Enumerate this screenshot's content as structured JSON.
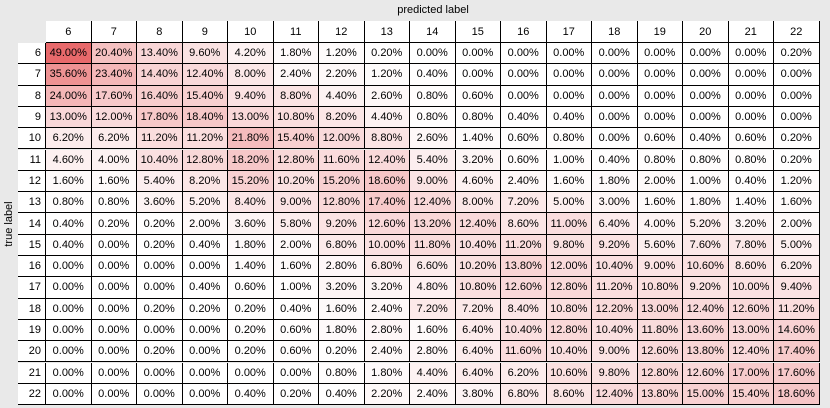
{
  "x_axis_title": "predicted label",
  "y_axis_title": "true label",
  "columns": [
    "6",
    "7",
    "8",
    "9",
    "10",
    "11",
    "12",
    "13",
    "14",
    "15",
    "16",
    "17",
    "18",
    "19",
    "20",
    "21",
    "22"
  ],
  "rows": [
    {
      "label": "6",
      "cells": [
        "49.00%",
        "20.40%",
        "13.40%",
        "9.60%",
        "4.20%",
        "1.80%",
        "1.20%",
        "0.20%",
        "0.00%",
        "0.00%",
        "0.00%",
        "0.00%",
        "0.00%",
        "0.00%",
        "0.00%",
        "0.00%",
        "0.20%"
      ]
    },
    {
      "label": "7",
      "cells": [
        "35.60%",
        "23.40%",
        "14.40%",
        "12.40%",
        "8.00%",
        "2.40%",
        "2.20%",
        "1.20%",
        "0.40%",
        "0.00%",
        "0.00%",
        "0.00%",
        "0.00%",
        "0.00%",
        "0.00%",
        "0.00%",
        "0.00%"
      ]
    },
    {
      "label": "8",
      "cells": [
        "24.00%",
        "17.60%",
        "16.40%",
        "15.40%",
        "9.40%",
        "8.80%",
        "4.40%",
        "2.60%",
        "0.80%",
        "0.60%",
        "0.00%",
        "0.00%",
        "0.00%",
        "0.00%",
        "0.00%",
        "0.00%",
        "0.00%"
      ]
    },
    {
      "label": "9",
      "cells": [
        "13.00%",
        "12.00%",
        "17.80%",
        "18.40%",
        "13.00%",
        "10.80%",
        "8.20%",
        "4.40%",
        "0.80%",
        "0.80%",
        "0.40%",
        "0.40%",
        "0.00%",
        "0.00%",
        "0.00%",
        "0.00%",
        "0.00%"
      ]
    },
    {
      "label": "10",
      "cells": [
        "6.20%",
        "6.20%",
        "11.20%",
        "11.20%",
        "21.80%",
        "15.40%",
        "12.00%",
        "8.80%",
        "2.60%",
        "1.40%",
        "0.60%",
        "0.80%",
        "0.00%",
        "0.60%",
        "0.40%",
        "0.60%",
        "0.20%"
      ]
    },
    {
      "label": "11",
      "cells": [
        "4.60%",
        "4.00%",
        "10.40%",
        "12.80%",
        "18.20%",
        "12.80%",
        "11.60%",
        "12.40%",
        "5.40%",
        "3.20%",
        "0.60%",
        "1.00%",
        "0.40%",
        "0.80%",
        "0.80%",
        "0.80%",
        "0.20%"
      ]
    },
    {
      "label": "12",
      "cells": [
        "1.60%",
        "1.60%",
        "5.40%",
        "8.20%",
        "15.20%",
        "10.20%",
        "15.20%",
        "18.60%",
        "9.00%",
        "4.60%",
        "2.40%",
        "1.60%",
        "1.80%",
        "2.00%",
        "1.00%",
        "0.40%",
        "1.20%"
      ]
    },
    {
      "label": "13",
      "cells": [
        "0.80%",
        "0.80%",
        "3.60%",
        "5.20%",
        "8.40%",
        "9.00%",
        "12.80%",
        "17.40%",
        "12.40%",
        "8.00%",
        "7.20%",
        "5.00%",
        "3.00%",
        "1.60%",
        "1.80%",
        "1.40%",
        "1.60%"
      ]
    },
    {
      "label": "14",
      "cells": [
        "0.40%",
        "0.20%",
        "0.20%",
        "2.00%",
        "3.60%",
        "5.80%",
        "9.20%",
        "12.60%",
        "13.20%",
        "12.40%",
        "8.60%",
        "11.00%",
        "6.40%",
        "4.00%",
        "5.20%",
        "3.20%",
        "2.00%"
      ]
    },
    {
      "label": "15",
      "cells": [
        "0.40%",
        "0.00%",
        "0.20%",
        "0.40%",
        "1.80%",
        "2.00%",
        "6.80%",
        "10.00%",
        "11.80%",
        "10.40%",
        "11.20%",
        "9.80%",
        "9.20%",
        "5.60%",
        "7.60%",
        "7.80%",
        "5.00%"
      ]
    },
    {
      "label": "16",
      "cells": [
        "0.00%",
        "0.00%",
        "0.00%",
        "0.00%",
        "1.40%",
        "1.60%",
        "2.80%",
        "6.80%",
        "6.60%",
        "10.20%",
        "13.80%",
        "12.00%",
        "10.40%",
        "9.00%",
        "10.60%",
        "8.60%",
        "6.20%"
      ]
    },
    {
      "label": "17",
      "cells": [
        "0.00%",
        "0.00%",
        "0.00%",
        "0.40%",
        "0.60%",
        "1.00%",
        "3.20%",
        "3.20%",
        "4.80%",
        "10.80%",
        "12.60%",
        "12.80%",
        "11.20%",
        "10.80%",
        "9.20%",
        "10.00%",
        "9.40%"
      ]
    },
    {
      "label": "18",
      "cells": [
        "0.00%",
        "0.00%",
        "0.20%",
        "0.20%",
        "0.20%",
        "0.40%",
        "1.60%",
        "2.40%",
        "7.20%",
        "7.20%",
        "8.40%",
        "10.80%",
        "12.20%",
        "13.00%",
        "12.40%",
        "12.60%",
        "11.20%"
      ]
    },
    {
      "label": "19",
      "cells": [
        "0.00%",
        "0.00%",
        "0.00%",
        "0.00%",
        "0.20%",
        "0.60%",
        "1.80%",
        "2.80%",
        "1.60%",
        "6.40%",
        "10.40%",
        "12.80%",
        "10.40%",
        "11.80%",
        "13.60%",
        "13.00%",
        "14.60%"
      ]
    },
    {
      "label": "20",
      "cells": [
        "0.00%",
        "0.00%",
        "0.20%",
        "0.00%",
        "0.20%",
        "0.60%",
        "0.20%",
        "2.40%",
        "2.80%",
        "6.40%",
        "11.60%",
        "10.40%",
        "9.00%",
        "12.60%",
        "13.80%",
        "12.40%",
        "17.40%"
      ]
    },
    {
      "label": "21",
      "cells": [
        "0.00%",
        "0.00%",
        "0.00%",
        "0.00%",
        "0.00%",
        "0.00%",
        "0.80%",
        "1.80%",
        "4.40%",
        "6.40%",
        "6.20%",
        "10.60%",
        "9.80%",
        "12.80%",
        "12.60%",
        "17.00%",
        "17.60%"
      ]
    },
    {
      "label": "22",
      "cells": [
        "0.00%",
        "0.00%",
        "0.00%",
        "0.00%",
        "0.40%",
        "0.20%",
        "0.40%",
        "2.20%",
        "2.40%",
        "3.80%",
        "6.80%",
        "8.60%",
        "12.40%",
        "13.80%",
        "15.00%",
        "15.40%",
        "18.60%"
      ]
    }
  ]
}
